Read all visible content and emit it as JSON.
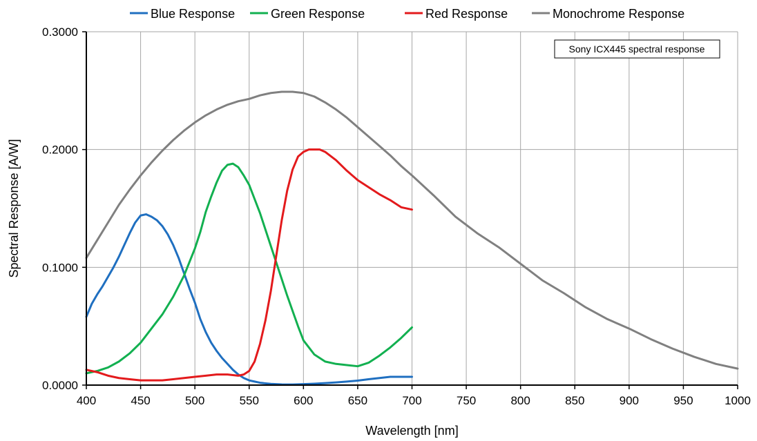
{
  "chart_data": {
    "type": "line",
    "title": "",
    "xlabel": "Wavelength [nm]",
    "ylabel": "Spectral Response [A/W]",
    "xlim": [
      400,
      1000
    ],
    "ylim": [
      0,
      0.3
    ],
    "xticks": [
      "400",
      "450",
      "500",
      "550",
      "600",
      "650",
      "700",
      "750",
      "800",
      "850",
      "900",
      "950",
      "1000"
    ],
    "yticks": [
      "0.0000",
      "0.1000",
      "0.2000",
      "0.3000"
    ],
    "grid": true,
    "legend_position": "top",
    "annotation": "Sony ICX445 spectral response",
    "series": [
      {
        "name": "Blue Response",
        "color": "#1f6fc0",
        "x": [
          400,
          405,
          410,
          415,
          420,
          425,
          430,
          435,
          440,
          445,
          450,
          455,
          460,
          465,
          470,
          475,
          480,
          485,
          490,
          495,
          500,
          505,
          510,
          515,
          520,
          525,
          530,
          535,
          540,
          545,
          550,
          555,
          560,
          565,
          570,
          575,
          580,
          585,
          590,
          600,
          610,
          620,
          630,
          640,
          650,
          660,
          670,
          680,
          690,
          700
        ],
        "y": [
          0.058,
          0.069,
          0.077,
          0.084,
          0.092,
          0.1,
          0.109,
          0.119,
          0.129,
          0.138,
          0.144,
          0.145,
          0.143,
          0.14,
          0.135,
          0.128,
          0.119,
          0.108,
          0.095,
          0.082,
          0.07,
          0.056,
          0.045,
          0.036,
          0.029,
          0.023,
          0.018,
          0.013,
          0.009,
          0.006,
          0.004,
          0.003,
          0.002,
          0.0015,
          0.001,
          0.0008,
          0.0006,
          0.0005,
          0.0005,
          0.0008,
          0.0012,
          0.0017,
          0.0023,
          0.003,
          0.0038,
          0.005,
          0.006,
          0.007,
          0.007,
          0.007
        ]
      },
      {
        "name": "Green Response",
        "color": "#12b050",
        "x": [
          400,
          410,
          420,
          430,
          440,
          450,
          460,
          470,
          480,
          490,
          500,
          505,
          510,
          515,
          520,
          525,
          530,
          535,
          540,
          545,
          550,
          555,
          560,
          565,
          570,
          575,
          580,
          585,
          590,
          595,
          600,
          610,
          620,
          630,
          640,
          650,
          660,
          670,
          680,
          690,
          700
        ],
        "y": [
          0.01,
          0.012,
          0.015,
          0.02,
          0.027,
          0.036,
          0.048,
          0.06,
          0.075,
          0.093,
          0.116,
          0.13,
          0.147,
          0.16,
          0.172,
          0.182,
          0.187,
          0.188,
          0.185,
          0.178,
          0.17,
          0.158,
          0.146,
          0.132,
          0.118,
          0.104,
          0.09,
          0.076,
          0.063,
          0.05,
          0.038,
          0.026,
          0.02,
          0.018,
          0.017,
          0.016,
          0.019,
          0.025,
          0.032,
          0.04,
          0.049
        ]
      },
      {
        "name": "Red Response",
        "color": "#e31a1c",
        "x": [
          400,
          410,
          420,
          430,
          440,
          450,
          460,
          470,
          480,
          490,
          500,
          510,
          520,
          530,
          540,
          545,
          550,
          555,
          560,
          565,
          570,
          575,
          580,
          585,
          590,
          595,
          600,
          605,
          610,
          615,
          620,
          630,
          640,
          650,
          660,
          670,
          680,
          690,
          700
        ],
        "y": [
          0.013,
          0.011,
          0.008,
          0.006,
          0.005,
          0.004,
          0.004,
          0.004,
          0.005,
          0.006,
          0.007,
          0.008,
          0.009,
          0.009,
          0.008,
          0.009,
          0.012,
          0.02,
          0.035,
          0.055,
          0.08,
          0.11,
          0.14,
          0.165,
          0.183,
          0.194,
          0.198,
          0.2,
          0.2,
          0.2,
          0.198,
          0.191,
          0.182,
          0.174,
          0.168,
          0.162,
          0.157,
          0.151,
          0.149
        ]
      },
      {
        "name": "Monochrome Response",
        "color": "#808080",
        "x": [
          400,
          410,
          420,
          430,
          440,
          450,
          460,
          470,
          480,
          490,
          500,
          510,
          520,
          530,
          540,
          550,
          560,
          570,
          580,
          590,
          600,
          610,
          620,
          630,
          640,
          650,
          660,
          670,
          680,
          690,
          700,
          720,
          740,
          760,
          780,
          800,
          820,
          840,
          860,
          880,
          900,
          920,
          940,
          960,
          980,
          1000
        ],
        "y": [
          0.108,
          0.123,
          0.138,
          0.153,
          0.166,
          0.178,
          0.189,
          0.199,
          0.208,
          0.216,
          0.223,
          0.229,
          0.234,
          0.238,
          0.241,
          0.243,
          0.246,
          0.248,
          0.249,
          0.249,
          0.248,
          0.245,
          0.24,
          0.234,
          0.227,
          0.219,
          0.211,
          0.203,
          0.195,
          0.186,
          0.178,
          0.161,
          0.143,
          0.129,
          0.117,
          0.103,
          0.089,
          0.078,
          0.066,
          0.056,
          0.048,
          0.039,
          0.031,
          0.024,
          0.018,
          0.014
        ]
      }
    ]
  }
}
